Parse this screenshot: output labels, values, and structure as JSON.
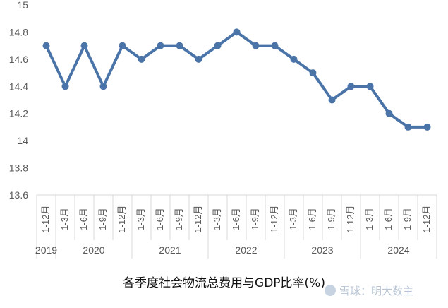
{
  "chart_data": {
    "type": "line",
    "title": "各季度社会物流总费用与GDP比率(%)",
    "xlabel": "",
    "ylabel": "",
    "ylim": [
      13.6,
      15
    ],
    "yticks": [
      "15",
      "14.8",
      "14.6",
      "14.4",
      "14.2",
      "14",
      "13.8",
      "13.6"
    ],
    "ytick_values": [
      15,
      14.8,
      14.6,
      14.4,
      14.2,
      14,
      13.8,
      13.6
    ],
    "categories": [
      "1-12月",
      "1-3月",
      "1-6月",
      "1-9月",
      "1-12月",
      "1-3月",
      "1-6月",
      "1-9月",
      "1-12月",
      "1-3月",
      "1-6月",
      "1-9月",
      "1-12月",
      "1-3月",
      "1-6月",
      "1-9月",
      "1-12月",
      "1-3月",
      "1-6月",
      "1-9月",
      "1-12月"
    ],
    "year_groups": [
      {
        "label": "2019",
        "count": 1
      },
      {
        "label": "2020",
        "count": 4
      },
      {
        "label": "2021",
        "count": 4
      },
      {
        "label": "2022",
        "count": 4
      },
      {
        "label": "2023",
        "count": 4
      },
      {
        "label": "2024",
        "count": 4
      }
    ],
    "series": [
      {
        "values": [
          14.7,
          14.4,
          14.7,
          14.4,
          14.7,
          14.6,
          14.7,
          14.7,
          14.6,
          14.7,
          14.8,
          14.7,
          14.7,
          14.6,
          14.5,
          14.3,
          14.4,
          14.4,
          14.2,
          14.1,
          14.1
        ]
      }
    ],
    "grid": false,
    "line_color": "#4a74a8",
    "axis_color": "#d9d9d9",
    "text_color": "#595959"
  },
  "watermark": {
    "text": "雪球：明大数主",
    "icon": "snowball-logo-icon"
  }
}
